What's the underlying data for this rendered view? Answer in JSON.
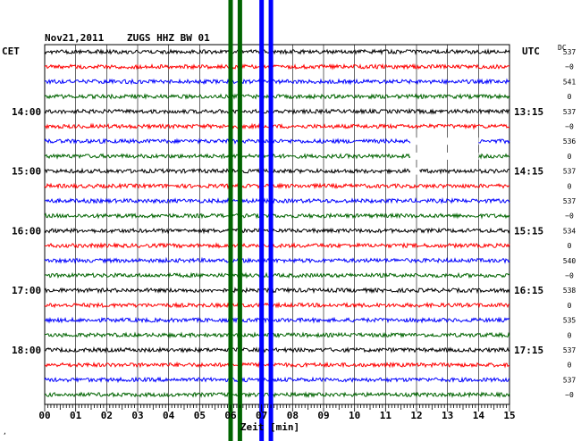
{
  "header": {
    "date": "Nov21,2011",
    "station": "ZUGS HHZ BW 01",
    "left_zone": "CET",
    "right_zone": "UTC",
    "dc_label": "DC"
  },
  "colors": {
    "trace_cycle": [
      "#000000",
      "#ff0000",
      "#0000ff",
      "#006400"
    ],
    "grid": "#000000",
    "markers": {
      "green": "#006400",
      "blue": "#0000ff"
    }
  },
  "chart_data": {
    "type": "line",
    "title": "Nov21,2011   ZUGS HHZ BW 01",
    "xlabel": "Zeit [min]",
    "ylabel": "",
    "xlim": [
      0,
      15
    ],
    "x_ticks": [
      "00",
      "01",
      "02",
      "03",
      "04",
      "05",
      "06",
      "07",
      "08",
      "09",
      "10",
      "11",
      "12",
      "13",
      "14",
      "15"
    ],
    "trace_count": 24,
    "trace_interval_min": 15,
    "grid": true,
    "left_time_labels": [
      {
        "trace": 4,
        "label": "14:00"
      },
      {
        "trace": 8,
        "label": "15:00"
      },
      {
        "trace": 12,
        "label": "16:00"
      },
      {
        "trace": 16,
        "label": "17:00"
      },
      {
        "trace": 20,
        "label": "18:00"
      }
    ],
    "right_time_labels": [
      {
        "trace": 4,
        "label": "13:15"
      },
      {
        "trace": 8,
        "label": "14:15"
      },
      {
        "trace": 12,
        "label": "15:15"
      },
      {
        "trace": 16,
        "label": "16:15"
      },
      {
        "trace": 20,
        "label": "17:15"
      }
    ],
    "dc_values": [
      {
        "trace": 0,
        "label": "537"
      },
      {
        "trace": 1,
        "label": "−0"
      },
      {
        "trace": 2,
        "label": "541"
      },
      {
        "trace": 3,
        "label": "0"
      },
      {
        "trace": 4,
        "label": "537"
      },
      {
        "trace": 5,
        "label": "−0"
      },
      {
        "trace": 6,
        "label": "536"
      },
      {
        "trace": 7,
        "label": "0"
      },
      {
        "trace": 8,
        "label": "537"
      },
      {
        "trace": 9,
        "label": "0"
      },
      {
        "trace": 10,
        "label": "537"
      },
      {
        "trace": 11,
        "label": "−0"
      },
      {
        "trace": 12,
        "label": "534"
      },
      {
        "trace": 13,
        "label": "0"
      },
      {
        "trace": 14,
        "label": "540"
      },
      {
        "trace": 15,
        "label": "−0"
      },
      {
        "trace": 16,
        "label": "538"
      },
      {
        "trace": 17,
        "label": "0"
      },
      {
        "trace": 18,
        "label": "535"
      },
      {
        "trace": 19,
        "label": "0"
      },
      {
        "trace": 20,
        "label": "537"
      },
      {
        "trace": 21,
        "label": "0"
      },
      {
        "trace": 22,
        "label": "537"
      },
      {
        "trace": 23,
        "label": "−0"
      }
    ],
    "vertical_markers": [
      {
        "minute": 6.0,
        "color": "green"
      },
      {
        "minute": 6.3,
        "color": "green"
      },
      {
        "minute": 7.0,
        "color": "blue"
      },
      {
        "minute": 7.3,
        "color": "blue"
      }
    ],
    "gaps": [
      {
        "trace": 6,
        "from_min": 11.8,
        "to_min": 14.0
      },
      {
        "trace": 7,
        "from_min": 11.8,
        "to_min": 14.0
      },
      {
        "trace": 8,
        "from_min": 11.8,
        "to_min": 12.1
      }
    ]
  }
}
